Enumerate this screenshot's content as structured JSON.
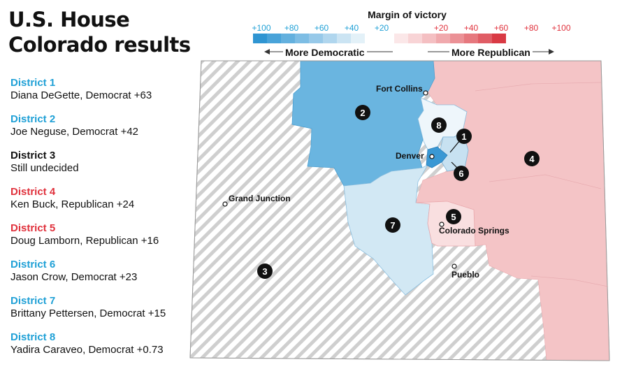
{
  "title_line1": "U.S. House",
  "title_line2": "Colorado results",
  "scale": {
    "title": "Margin of victory",
    "ticks_dem": [
      "+100",
      "+80",
      "+60",
      "+40",
      "+20"
    ],
    "ticks_rep": [
      "+20",
      "+40",
      "+60",
      "+80",
      "+100"
    ],
    "more_dem": "More Democratic",
    "more_rep": "More Republican",
    "colors_dem": [
      "#2f95d2",
      "#49a3d9",
      "#63b0de",
      "#7dbde4",
      "#97c9e9",
      "#b0d6ee",
      "#cbe4f3",
      "#e3f1f8"
    ],
    "colors_rep": [
      "#fbe7e8",
      "#f8d4d6",
      "#f4bfc2",
      "#f0a9ad",
      "#eb9196",
      "#e6787e",
      "#e05d65",
      "#d93a44"
    ]
  },
  "districts": [
    {
      "name": "District 1",
      "detail": "Diana DeGette, Democrat +63",
      "party": "dem"
    },
    {
      "name": "District 2",
      "detail": "Joe Neguse, Democrat +42",
      "party": "dem"
    },
    {
      "name": "District 3",
      "detail": "Still undecided",
      "party": "und"
    },
    {
      "name": "District 4",
      "detail": "Ken Buck, Republican +24",
      "party": "rep"
    },
    {
      "name": "District 5",
      "detail": "Doug Lamborn, Republican +16",
      "party": "rep"
    },
    {
      "name": "District 6",
      "detail": "Jason Crow, Democrat +23",
      "party": "dem"
    },
    {
      "name": "District 7",
      "detail": "Brittany Pettersen, Democrat +15",
      "party": "dem"
    },
    {
      "name": "District 8",
      "detail": "Yadira Caraveo, Democrat +0.73",
      "party": "dem"
    }
  ],
  "map": {
    "cities": [
      "Fort Collins",
      "Denver",
      "Grand Junction",
      "Colorado Springs",
      "Pueblo"
    ],
    "district_numbers": [
      "1",
      "2",
      "3",
      "4",
      "5",
      "6",
      "7",
      "8"
    ],
    "colors": {
      "d1": "#3a98d4",
      "d2": "#6ab5e0",
      "d3_hatch": "#cfcfcf",
      "d4": "#f4c4c6",
      "d5": "#f9dfe0",
      "d6": "#c7e1f1",
      "d7": "#d2e8f4",
      "d8": "#eef6fb"
    }
  }
}
